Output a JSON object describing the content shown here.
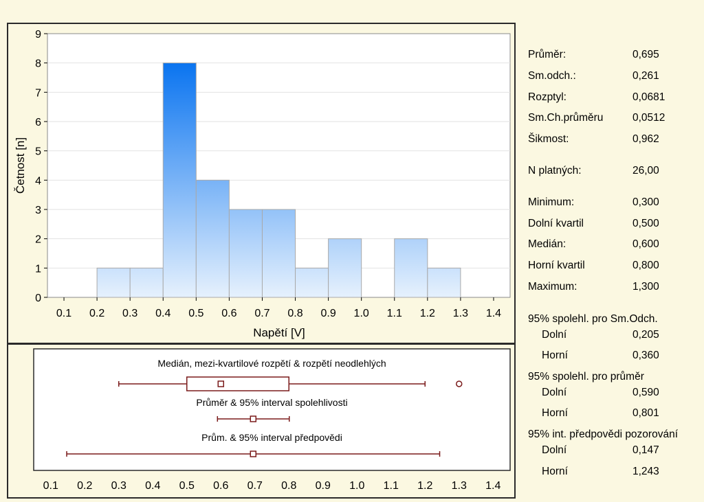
{
  "colors": {
    "background": "#fbf8e1",
    "bar_top": "#0a74f0",
    "bar_bottom": "#e6f1fd",
    "box_line": "#7a1a1a"
  },
  "chart_data": [
    {
      "type": "bar",
      "subtype": "histogram",
      "xlabel": "Napětí [V]",
      "ylabel": "Četnost [n]",
      "xlim": [
        0.05,
        1.45
      ],
      "ylim": [
        0,
        9
      ],
      "x_ticks": [
        "0.1",
        "0.2",
        "0.3",
        "0.4",
        "0.5",
        "0.6",
        "0.7",
        "0.8",
        "0.9",
        "1.0",
        "1.1",
        "1.2",
        "1.3",
        "1.4"
      ],
      "y_ticks": [
        "0",
        "1",
        "2",
        "3",
        "4",
        "5",
        "6",
        "7",
        "8",
        "9"
      ],
      "grid": true,
      "bins": [
        {
          "from": 0.2,
          "to": 0.3,
          "count": 1
        },
        {
          "from": 0.3,
          "to": 0.4,
          "count": 1
        },
        {
          "from": 0.4,
          "to": 0.5,
          "count": 8
        },
        {
          "from": 0.5,
          "to": 0.6,
          "count": 4
        },
        {
          "from": 0.6,
          "to": 0.7,
          "count": 3
        },
        {
          "from": 0.7,
          "to": 0.8,
          "count": 3
        },
        {
          "from": 0.8,
          "to": 0.9,
          "count": 1
        },
        {
          "from": 0.9,
          "to": 1.0,
          "count": 2
        },
        {
          "from": 1.0,
          "to": 1.1,
          "count": 0
        },
        {
          "from": 1.1,
          "to": 1.2,
          "count": 2
        },
        {
          "from": 1.2,
          "to": 1.3,
          "count": 1
        }
      ]
    },
    {
      "type": "box",
      "xlim": [
        0.05,
        1.45
      ],
      "x_ticks": [
        "0.1",
        "0.2",
        "0.3",
        "0.4",
        "0.5",
        "0.6",
        "0.7",
        "0.8",
        "0.9",
        "1.0",
        "1.1",
        "1.2",
        "1.3",
        "1.4"
      ],
      "rows": [
        {
          "label": "Medián, mezi-kvartilové rozpětí & rozpětí neodlehlých",
          "whisker_low": 0.3,
          "q1": 0.5,
          "median": 0.6,
          "q3": 0.8,
          "whisker_high": 1.2,
          "outliers": [
            1.3
          ]
        },
        {
          "label": "Průměr & 95% interval spolehlivosti",
          "center": 0.695,
          "low": 0.59,
          "high": 0.801
        },
        {
          "label": "Prům. & 95% interval předpovědi",
          "center": 0.695,
          "low": 0.147,
          "high": 1.243
        }
      ]
    }
  ],
  "stats": {
    "prumer": {
      "label": "Průměr:",
      "value": "0,695"
    },
    "smodch": {
      "label": "Sm.odch.:",
      "value": "0,261"
    },
    "rozptyl": {
      "label": "Rozptyl:",
      "value": "0,0681"
    },
    "smchp": {
      "label": "Sm.Ch.průměru",
      "value": "0,0512"
    },
    "sikmost": {
      "label": "Šikmost:",
      "value": "0,962"
    },
    "nplat": {
      "label": "N platných:",
      "value": "26,00"
    },
    "minimum": {
      "label": "Minimum:",
      "value": "0,300"
    },
    "dkv": {
      "label": "Dolní kvartil",
      "value": "0,500"
    },
    "median": {
      "label": "Medián:",
      "value": "0,600"
    },
    "hkv": {
      "label": "Horní kvartil",
      "value": "0,800"
    },
    "maximum": {
      "label": "Maximum:",
      "value": "1,300"
    },
    "ci_sd_title": "95% spolehl. pro Sm.Odch.",
    "ci_sd_low": {
      "label": "Dolní",
      "value": "0,205"
    },
    "ci_sd_high": {
      "label": "Horní",
      "value": "0,360"
    },
    "ci_mean_title": "95% spolehl. pro průměr",
    "ci_mean_low": {
      "label": "Dolní",
      "value": "0,590"
    },
    "ci_mean_high": {
      "label": "Horní",
      "value": "0,801"
    },
    "pi_title": "95% int. předpovědi pozorování",
    "pi_low": {
      "label": "Dolní",
      "value": "0,147"
    },
    "pi_high": {
      "label": "Horní",
      "value": "1,243"
    }
  }
}
